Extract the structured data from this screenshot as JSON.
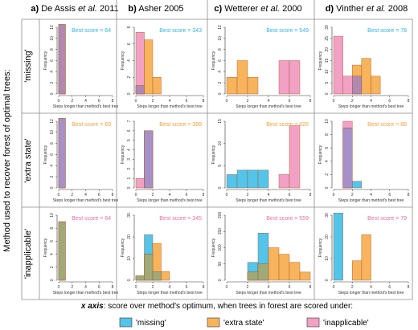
{
  "colors": {
    "missing": "#53c4ea",
    "extra_state": "#f7b45c",
    "inapplicable": "#f2a0c4",
    "overlap_extra_inapplicable": "#b088b0",
    "overlap_missing_extra": "#a0aa78",
    "overlap_missing_inapplicable": "#a690c8",
    "bar_stroke": "#a05020",
    "axis": "#333333",
    "grid_line": "#8a8a8a"
  },
  "y_side_title": "Method used to recover forest of optimal trees:",
  "row_labels": [
    "'missing'",
    "'extra state'",
    "'inapplicable'"
  ],
  "column_headers": [
    {
      "letter": "a)",
      "author": "De Assis",
      "etal": "et al.",
      "year": "2011"
    },
    {
      "letter": "b)",
      "author": "Asher",
      "etal": "",
      "year": "2005"
    },
    {
      "letter": "c)",
      "author": "Wetterer",
      "etal": "et al.",
      "year": "2000"
    },
    {
      "letter": "d)",
      "author": "Vinther",
      "etal": "et al.",
      "year": "2008"
    }
  ],
  "footer": {
    "xaxis_prefix": "x axis",
    "xaxis_text": ": score over method's optimum, when trees in forest are scored under:",
    "legend": [
      {
        "key": "missing",
        "label": "'missing'"
      },
      {
        "key": "extra_state",
        "label": "'extra state'"
      },
      {
        "key": "inapplicable",
        "label": "'inapplicable'"
      }
    ]
  },
  "chart_data": [
    {
      "id": "a-missing",
      "type": "bar",
      "title": "",
      "xlabel": "Steps longer than method's best tree",
      "ylabel": "Frequency",
      "xlim": [
        0,
        8
      ],
      "x_ticks": [
        0,
        2,
        4,
        6,
        8
      ],
      "ylim": [
        0,
        12
      ],
      "y_ticks": [
        0,
        2,
        4,
        6,
        8,
        10,
        12
      ],
      "annotation": "Best score = 64",
      "annotation_color": "#30b0e0",
      "series": [
        {
          "name": "'inapplicable'",
          "key": "inapplicable",
          "bins": [
            {
              "x0": 0,
              "x1": 1,
              "v": 12.5
            }
          ]
        },
        {
          "name": "'extra state'",
          "key": "extra_state",
          "bins": [
            {
              "x0": 0,
              "x1": 1,
              "v": 12.5
            }
          ]
        }
      ]
    },
    {
      "id": "b-missing",
      "type": "bar",
      "title": "",
      "xlabel": "Steps longer than method's best tree",
      "ylabel": "Frequency",
      "xlim": [
        0,
        8
      ],
      "x_ticks": [
        0,
        2,
        4,
        6,
        8
      ],
      "ylim": [
        0,
        8
      ],
      "y_ticks": [
        0,
        2,
        4,
        6,
        8
      ],
      "annotation": "Best score = 343",
      "annotation_color": "#30b0e0",
      "series": [
        {
          "name": "'inapplicable'",
          "key": "inapplicable",
          "bins": [
            {
              "x0": 0,
              "x1": 1,
              "v": 7.4
            }
          ]
        },
        {
          "name": "'extra state'",
          "key": "extra_state",
          "bins": [
            {
              "x0": 0,
              "x1": 1,
              "v": 1
            },
            {
              "x0": 1,
              "x1": 2,
              "v": 6.5
            },
            {
              "x0": 2,
              "x1": 3,
              "v": 2
            }
          ]
        }
      ]
    },
    {
      "id": "c-missing",
      "type": "bar",
      "title": "",
      "xlabel": "Steps longer than method's best tree",
      "ylabel": "Frequency",
      "xlim": [
        0,
        8
      ],
      "x_ticks": [
        0,
        2,
        4,
        6,
        8
      ],
      "ylim": [
        0,
        12
      ],
      "y_ticks": [
        0,
        2,
        4,
        6,
        8,
        10,
        12
      ],
      "annotation": "Best score = 549",
      "annotation_color": "#30b0e0",
      "series": [
        {
          "name": "'extra state'",
          "key": "extra_state",
          "bins": [
            {
              "x0": 0,
              "x1": 1,
              "v": 3
            },
            {
              "x0": 1,
              "x1": 2,
              "v": 6
            },
            {
              "x0": 2,
              "x1": 3,
              "v": 3
            }
          ]
        },
        {
          "name": "'inapplicable'",
          "key": "inapplicable",
          "bins": [
            {
              "x0": 5,
              "x1": 6,
              "v": 6
            },
            {
              "x0": 6,
              "x1": 7,
              "v": 6
            }
          ]
        }
      ]
    },
    {
      "id": "d-missing",
      "type": "bar",
      "title": "",
      "xlabel": "Steps longer than method's best tree",
      "ylabel": "Frequency",
      "xlim": [
        0,
        8
      ],
      "x_ticks": [
        0,
        2,
        4,
        6,
        8
      ],
      "ylim": [
        0,
        30
      ],
      "y_ticks": [
        0,
        5,
        10,
        15,
        20,
        25,
        30
      ],
      "annotation": "Best score = 78",
      "annotation_color": "#30b0e0",
      "series": [
        {
          "name": "'inapplicable'",
          "key": "inapplicable",
          "bins": [
            {
              "x0": 0,
              "x1": 1,
              "v": 26
            },
            {
              "x0": 1,
              "x1": 2,
              "v": 8
            },
            {
              "x0": 2,
              "x1": 3,
              "v": 8
            }
          ]
        },
        {
          "name": "'extra state'",
          "key": "extra_state",
          "bins": [
            {
              "x0": 2,
              "x1": 3,
              "v": 13
            },
            {
              "x0": 3,
              "x1": 4,
              "v": 16
            },
            {
              "x0": 4,
              "x1": 5,
              "v": 8
            }
          ]
        }
      ]
    },
    {
      "id": "a-extra",
      "type": "bar",
      "title": "",
      "xlabel": "Steps longer than method's best tree",
      "ylabel": "Frequency",
      "xlim": [
        0,
        8
      ],
      "x_ticks": [
        0,
        2,
        4,
        6,
        8
      ],
      "ylim": [
        0,
        12
      ],
      "y_ticks": [
        0,
        2,
        4,
        6,
        8,
        10,
        12
      ],
      "annotation": "Best score = 69",
      "annotation_color": "#f0a040",
      "series": [
        {
          "name": "'missing'",
          "key": "missing",
          "bins": [
            {
              "x0": 0,
              "x1": 1,
              "v": 12.5
            }
          ]
        },
        {
          "name": "'inapplicable'",
          "key": "inapplicable",
          "bins": [
            {
              "x0": 0,
              "x1": 1,
              "v": 12.5
            }
          ]
        }
      ]
    },
    {
      "id": "b-extra",
      "type": "bar",
      "title": "",
      "xlabel": "Steps longer than method's best tree",
      "ylabel": "Frequency",
      "xlim": [
        0,
        8
      ],
      "x_ticks": [
        0,
        2,
        4,
        6,
        8
      ],
      "ylim": [
        0,
        7
      ],
      "y_ticks": [
        0,
        1,
        2,
        3,
        4,
        5,
        6,
        7
      ],
      "annotation": "Best score = 389",
      "annotation_color": "#f0a040",
      "series": [
        {
          "name": "'inapplicable'",
          "key": "inapplicable",
          "bins": [
            {
              "x0": 0,
              "x1": 1,
              "v": 1
            },
            {
              "x0": 1,
              "x1": 2,
              "v": 6
            }
          ]
        },
        {
          "name": "'missing'",
          "key": "missing",
          "bins": [
            {
              "x0": 1,
              "x1": 2,
              "v": 6
            }
          ]
        }
      ]
    },
    {
      "id": "c-extra",
      "type": "bar",
      "title": "",
      "xlabel": "Steps longer than method's best tree",
      "ylabel": "Frequency",
      "xlim": [
        0,
        8
      ],
      "x_ticks": [
        0,
        2,
        4,
        6,
        8
      ],
      "ylim": [
        0,
        15
      ],
      "y_ticks": [
        0,
        5,
        10,
        15
      ],
      "annotation": "Best score = 626",
      "annotation_color": "#f0a040",
      "series": [
        {
          "name": "'missing'",
          "key": "missing",
          "bins": [
            {
              "x0": 0,
              "x1": 1,
              "v": 3
            },
            {
              "x0": 1,
              "x1": 2,
              "v": 4
            },
            {
              "x0": 2,
              "x1": 3,
              "v": 4
            },
            {
              "x0": 3,
              "x1": 4,
              "v": 4
            }
          ]
        },
        {
          "name": "'inapplicable'",
          "key": "inapplicable",
          "bins": [
            {
              "x0": 5,
              "x1": 6,
              "v": 3
            },
            {
              "x0": 6,
              "x1": 7,
              "v": 14
            }
          ]
        }
      ]
    },
    {
      "id": "d-extra",
      "type": "bar",
      "title": "",
      "xlabel": "Steps longer than method's best tree",
      "ylabel": "Frequency",
      "xlim": [
        0,
        8
      ],
      "x_ticks": [
        0,
        2,
        4,
        6,
        8
      ],
      "ylim": [
        0,
        10
      ],
      "y_ticks": [
        0,
        2,
        4,
        6,
        8,
        10
      ],
      "annotation": "Best score = 88",
      "annotation_color": "#f0a040",
      "series": [
        {
          "name": "'inapplicable'",
          "key": "inapplicable",
          "bins": [
            {
              "x0": 1,
              "x1": 2,
              "v": 10
            }
          ]
        },
        {
          "name": "'missing'",
          "key": "missing",
          "bins": [
            {
              "x0": 1,
              "x1": 2,
              "v": 9
            },
            {
              "x0": 2,
              "x1": 3,
              "v": 1
            }
          ]
        }
      ]
    },
    {
      "id": "a-inapp",
      "type": "bar",
      "title": "",
      "xlabel": "Steps longer than method's best tree",
      "ylabel": "Frequency",
      "xlim": [
        0,
        8
      ],
      "x_ticks": [
        0,
        2,
        4,
        6,
        8
      ],
      "ylim": [
        0,
        10
      ],
      "y_ticks": [
        0,
        2,
        4,
        6,
        8,
        10
      ],
      "annotation": "Best score = 64",
      "annotation_color": "#e070a0",
      "series": [
        {
          "name": "'missing'",
          "key": "missing",
          "bins": [
            {
              "x0": 0,
              "x1": 1,
              "v": 9
            }
          ]
        },
        {
          "name": "'extra state'",
          "key": "extra_state",
          "bins": [
            {
              "x0": 0,
              "x1": 1,
              "v": 9
            }
          ]
        }
      ]
    },
    {
      "id": "b-inapp",
      "type": "bar",
      "title": "",
      "xlabel": "Steps longer than method's best tree",
      "ylabel": "Frequency",
      "xlim": [
        0,
        8
      ],
      "x_ticks": [
        0,
        2,
        4,
        6,
        8
      ],
      "ylim": [
        0,
        30
      ],
      "y_ticks": [
        0,
        10,
        20,
        30
      ],
      "annotation": "Best score = 345",
      "annotation_color": "#e070a0",
      "series": [
        {
          "name": "'missing'",
          "key": "missing",
          "bins": [
            {
              "x0": 0,
              "x1": 1,
              "v": 2
            },
            {
              "x0": 1,
              "x1": 2,
              "v": 21
            },
            {
              "x0": 2,
              "x1": 3,
              "v": 4
            }
          ]
        },
        {
          "name": "'extra state'",
          "key": "extra_state",
          "bins": [
            {
              "x0": 0,
              "x1": 1,
              "v": 2
            },
            {
              "x0": 1,
              "x1": 2,
              "v": 12
            },
            {
              "x0": 2,
              "x1": 3,
              "v": 17
            },
            {
              "x0": 3,
              "x1": 4,
              "v": 4
            }
          ]
        }
      ]
    },
    {
      "id": "c-inapp",
      "type": "bar",
      "title": "",
      "xlabel": "Steps longer than method's best tree",
      "ylabel": "Frequency",
      "xlim": [
        0,
        8
      ],
      "x_ticks": [
        0,
        2,
        4,
        6,
        8
      ],
      "ylim": [
        0,
        200
      ],
      "y_ticks": [
        0,
        50,
        100,
        150,
        200
      ],
      "annotation": "Best score = 559",
      "annotation_color": "#e070a0",
      "series": [
        {
          "name": "'missing'",
          "key": "missing",
          "bins": [
            {
              "x0": 2,
              "x1": 3,
              "v": 55
            },
            {
              "x0": 3,
              "x1": 4,
              "v": 145
            }
          ]
        },
        {
          "name": "'extra state'",
          "key": "extra_state",
          "bins": [
            {
              "x0": 2,
              "x1": 3,
              "v": 25
            },
            {
              "x0": 3,
              "x1": 4,
              "v": 50
            },
            {
              "x0": 4,
              "x1": 5,
              "v": 100
            },
            {
              "x0": 5,
              "x1": 6,
              "v": 80
            },
            {
              "x0": 6,
              "x1": 7,
              "v": 55
            },
            {
              "x0": 7,
              "x1": 8,
              "v": 25
            }
          ]
        }
      ]
    },
    {
      "id": "d-inapp",
      "type": "bar",
      "title": "",
      "xlabel": "Steps longer than method's best tree",
      "ylabel": "Frequency",
      "xlim": [
        0,
        8
      ],
      "x_ticks": [
        0,
        2,
        4,
        6,
        8
      ],
      "ylim": [
        0,
        30
      ],
      "y_ticks": [
        0,
        10,
        20,
        30
      ],
      "annotation": "Best score = 79",
      "annotation_color": "#e070a0",
      "series": [
        {
          "name": "'missing'",
          "key": "missing",
          "bins": [
            {
              "x0": 0,
              "x1": 1,
              "v": 31
            }
          ]
        },
        {
          "name": "'extra state'",
          "key": "extra_state",
          "bins": [
            {
              "x0": 2,
              "x1": 3,
              "v": 9
            },
            {
              "x0": 3,
              "x1": 4,
              "v": 21
            }
          ]
        }
      ]
    }
  ]
}
